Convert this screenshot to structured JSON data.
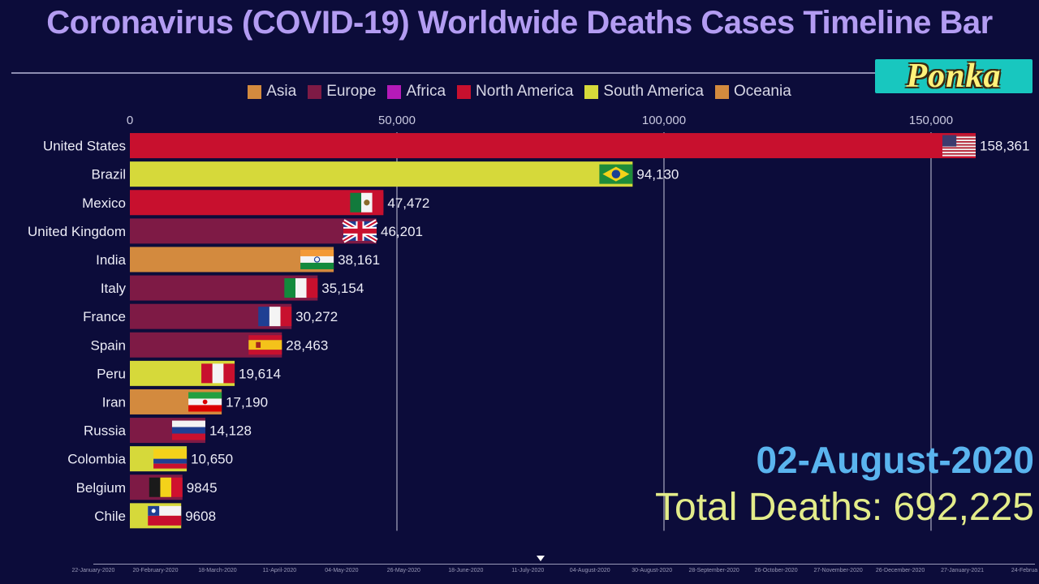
{
  "header": {
    "title": "Coronavirus (COVID-19) Worldwide Deaths Cases Timeline Bar",
    "brand": "Ponka"
  },
  "legend": [
    {
      "label": "Asia",
      "color": "#d38a3e"
    },
    {
      "label": "Europe",
      "color": "#7e1a45"
    },
    {
      "label": "Africa",
      "color": "#b51ab8"
    },
    {
      "label": "North America",
      "color": "#c8102e"
    },
    {
      "label": "South America",
      "color": "#d6d93a"
    },
    {
      "label": "Oceania",
      "color": "#d38a3e"
    }
  ],
  "chart_data": {
    "type": "bar",
    "orientation": "horizontal",
    "title": "Coronavirus (COVID-19) Worldwide Deaths Cases Timeline Bar",
    "xlim": [
      0,
      158361
    ],
    "x_ticks": [
      0,
      50000,
      100000,
      150000
    ],
    "x_tick_labels": [
      "0",
      "50,000",
      "100,000",
      "150,000"
    ],
    "grid": true,
    "legend_position": "top",
    "categories": [
      "United States",
      "Brazil",
      "Mexico",
      "United Kingdom",
      "India",
      "Italy",
      "France",
      "Spain",
      "Peru",
      "Iran",
      "Russia",
      "Colombia",
      "Belgium",
      "Chile"
    ],
    "values": [
      158361,
      94130,
      47472,
      46201,
      38161,
      35154,
      30272,
      28463,
      19614,
      17190,
      14128,
      10650,
      9845,
      9608
    ],
    "value_labels": [
      "158,361",
      "94,130",
      "47,472",
      "46,201",
      "38,161",
      "35,154",
      "30,272",
      "28,463",
      "19,614",
      "17,190",
      "14,128",
      "10,650",
      "9845",
      "9608"
    ],
    "regions": [
      "North America",
      "South America",
      "North America",
      "Europe",
      "Asia",
      "Europe",
      "Europe",
      "Europe",
      "South America",
      "Asia",
      "Europe",
      "South America",
      "Europe",
      "South America"
    ],
    "flags": [
      "us-flag",
      "brazil-flag",
      "mexico-flag",
      "uk-flag",
      "india-flag",
      "italy-flag",
      "france-flag",
      "spain-flag",
      "peru-flag",
      "iran-flag",
      "russia-flag",
      "colombia-flag",
      "belgium-flag",
      "chile-flag"
    ]
  },
  "current": {
    "date": "02-August-2020",
    "total": "Total Deaths: 692,225"
  },
  "timeline": {
    "ticks": [
      "22-January-2020",
      "20-February-2020",
      "18-March-2020",
      "11-April-2020",
      "04-May-2020",
      "26-May-2020",
      "18-June-2020",
      "11-July-2020",
      "04-August-2020",
      "30-August-2020",
      "28-September-2020",
      "26-October-2020",
      "27-November-2020",
      "26-December-2020",
      "27-January-2021",
      "24-Februa"
    ],
    "position": 0.48
  }
}
